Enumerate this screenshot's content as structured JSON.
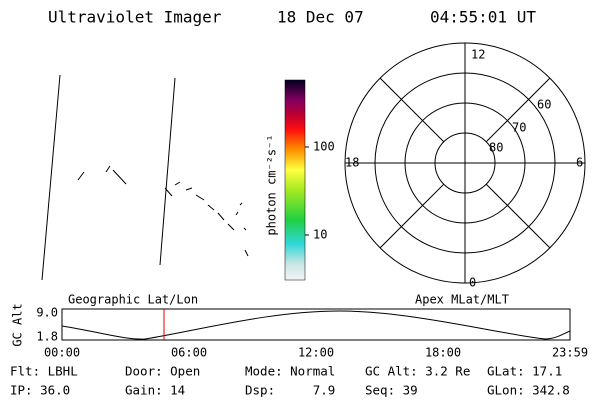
{
  "header": {
    "title": "Ultraviolet Imager",
    "date": "18 Dec 07",
    "time": "04:55:01 UT"
  },
  "colorbar": {
    "label": "photon cm⁻²s⁻¹",
    "ticks": [
      "100",
      "10"
    ]
  },
  "polar": {
    "mlt_labels": [
      "12",
      "18",
      "6",
      "0"
    ],
    "lat_labels": [
      "60",
      "70",
      "80"
    ]
  },
  "orbit": {
    "left_title": "Geographic Lat/Lon",
    "right_title": "Apex MLat/MLT",
    "y_label": "GC Alt",
    "y_ticks": [
      "9.0",
      "1.8"
    ],
    "x_ticks": [
      "00:00",
      "06:00",
      "12:00",
      "18:00",
      "23:59"
    ]
  },
  "status": {
    "rows": [
      [
        "Flt: LBHL",
        "Door: Open",
        "Mode: Normal",
        "GC Alt: 3.2 Re",
        "GLat: 17.1"
      ],
      [
        "IP: 36.0",
        "Gain: 14",
        "Dsp:     7.9",
        "Seq: 39",
        "GLon: 342.8"
      ]
    ]
  }
}
